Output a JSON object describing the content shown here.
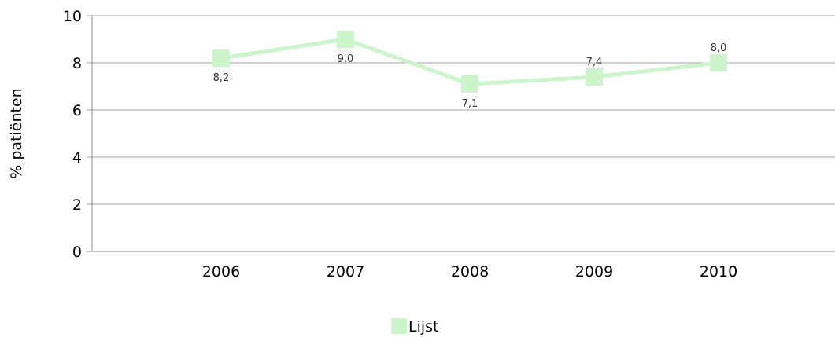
{
  "chart_data": {
    "type": "line",
    "x": [
      "2006",
      "2007",
      "2008",
      "2009",
      "2010"
    ],
    "series": [
      {
        "name": "Lijst",
        "values": [
          8.2,
          9.0,
          7.1,
          7.4,
          8.0
        ],
        "data_labels": [
          "8,2",
          "9,0",
          "7,1",
          "7,4",
          "8,0"
        ],
        "color": "#ccf5cc"
      }
    ],
    "ylabel": "% patiënten",
    "ylim": [
      0,
      10
    ],
    "yticks": [
      "0",
      "2",
      "4",
      "6",
      "8",
      "10"
    ],
    "grid": true,
    "legend_position": "bottom"
  }
}
